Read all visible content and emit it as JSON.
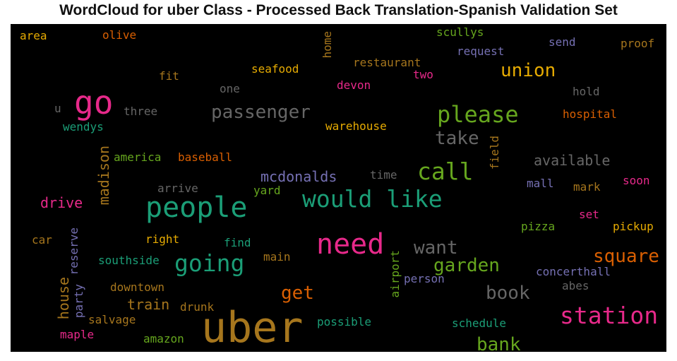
{
  "title": "WordCloud for uber Class - Processed Back Translation-Spanish Validation Set",
  "words": [
    {
      "text": "uber",
      "color": "#a6761d"
    },
    {
      "text": "need",
      "color": "#e7298a"
    },
    {
      "text": "people",
      "color": "#1b9e77"
    },
    {
      "text": "would like",
      "color": "#1b9e77"
    },
    {
      "text": "go",
      "color": "#e7298a"
    },
    {
      "text": "please",
      "color": "#66a61e"
    },
    {
      "text": "station",
      "color": "#e7298a"
    },
    {
      "text": "call",
      "color": "#66a61e"
    },
    {
      "text": "passenger",
      "color": "#666666"
    },
    {
      "text": "going",
      "color": "#1b9e77"
    },
    {
      "text": "want",
      "color": "#666666"
    },
    {
      "text": "union",
      "color": "#e6ab02"
    },
    {
      "text": "take",
      "color": "#666666"
    },
    {
      "text": "square",
      "color": "#d95f02"
    },
    {
      "text": "garden",
      "color": "#66a61e"
    },
    {
      "text": "book",
      "color": "#666666"
    },
    {
      "text": "bank",
      "color": "#66a61e"
    },
    {
      "text": "get",
      "color": "#d95f02"
    },
    {
      "text": "available",
      "color": "#666666"
    },
    {
      "text": "mcdonalds",
      "color": "#7570b3"
    },
    {
      "text": "drive",
      "color": "#e7298a"
    },
    {
      "text": "madison",
      "color": "#a6761d"
    },
    {
      "text": "house",
      "color": "#a6761d"
    },
    {
      "text": "train",
      "color": "#a6761d"
    },
    {
      "text": "seafood",
      "color": "#e6ab02"
    },
    {
      "text": "restaurant",
      "color": "#a6761d"
    },
    {
      "text": "scullys",
      "color": "#66a61e"
    },
    {
      "text": "request",
      "color": "#7570b3"
    },
    {
      "text": "send",
      "color": "#7570b3"
    },
    {
      "text": "proof",
      "color": "#a6761d"
    },
    {
      "text": "area",
      "color": "#e6ab02"
    },
    {
      "text": "olive",
      "color": "#d95f02"
    },
    {
      "text": "home",
      "color": "#a6761d"
    },
    {
      "text": "two",
      "color": "#e7298a"
    },
    {
      "text": "fit",
      "color": "#a6761d"
    },
    {
      "text": "one",
      "color": "#666666"
    },
    {
      "text": "devon",
      "color": "#e7298a"
    },
    {
      "text": "hold",
      "color": "#666666"
    },
    {
      "text": "u",
      "color": "#666666"
    },
    {
      "text": "three",
      "color": "#666666"
    },
    {
      "text": "hospital",
      "color": "#d95f02"
    },
    {
      "text": "wendys",
      "color": "#1b9e77"
    },
    {
      "text": "warehouse",
      "color": "#e6ab02"
    },
    {
      "text": "field",
      "color": "#a6761d"
    },
    {
      "text": "america",
      "color": "#66a61e"
    },
    {
      "text": "baseball",
      "color": "#d95f02"
    },
    {
      "text": "time",
      "color": "#666666"
    },
    {
      "text": "arrive",
      "color": "#666666"
    },
    {
      "text": "yard",
      "color": "#66a61e"
    },
    {
      "text": "mall",
      "color": "#7570b3"
    },
    {
      "text": "mark",
      "color": "#a6761d"
    },
    {
      "text": "soon",
      "color": "#e7298a"
    },
    {
      "text": "set",
      "color": "#e7298a"
    },
    {
      "text": "pizza",
      "color": "#66a61e"
    },
    {
      "text": "pickup",
      "color": "#e6ab02"
    },
    {
      "text": "car",
      "color": "#a6761d"
    },
    {
      "text": "reserve",
      "color": "#7570b3"
    },
    {
      "text": "right",
      "color": "#e6ab02"
    },
    {
      "text": "find",
      "color": "#1b9e77"
    },
    {
      "text": "main",
      "color": "#a6761d"
    },
    {
      "text": "southside",
      "color": "#1b9e77"
    },
    {
      "text": "airport",
      "color": "#66a61e"
    },
    {
      "text": "person",
      "color": "#7570b3"
    },
    {
      "text": "concerthall",
      "color": "#7570b3"
    },
    {
      "text": "abes",
      "color": "#666666"
    },
    {
      "text": "downtown",
      "color": "#a6761d"
    },
    {
      "text": "party",
      "color": "#7570b3"
    },
    {
      "text": "drunk",
      "color": "#a6761d"
    },
    {
      "text": "salvage",
      "color": "#a6761d"
    },
    {
      "text": "amazon",
      "color": "#66a61e"
    },
    {
      "text": "maple",
      "color": "#e7298a"
    },
    {
      "text": "possible",
      "color": "#1b9e77"
    },
    {
      "text": "schedule",
      "color": "#1b9e77"
    }
  ]
}
